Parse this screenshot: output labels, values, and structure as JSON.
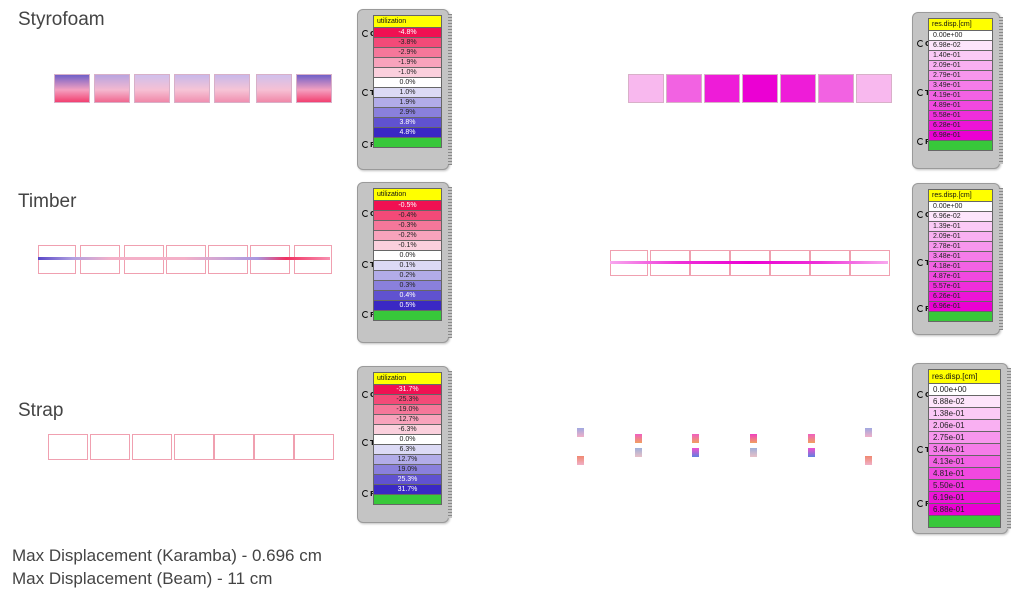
{
  "sections": [
    {
      "name": "Styrofoam",
      "utilization": {
        "header": "utilization",
        "ports": [
          "C",
          "T",
          "R"
        ],
        "labels": [
          "-4.8%",
          "-3.8%",
          "-2.9%",
          "-1.9%",
          "-1.0%",
          "0.0%",
          "1.0%",
          "1.9%",
          "2.9%",
          "3.8%",
          "4.8%"
        ]
      },
      "displacement": {
        "header": "res.disp.[cm]",
        "ports": [
          "C",
          "T",
          "R"
        ],
        "labels": [
          "0.00e+00",
          "6.98e-02",
          "1.40e-01",
          "2.09e-01",
          "2.79e-01",
          "3.49e-01",
          "4.19e-01",
          "4.89e-01",
          "5.58e-01",
          "6.28e-01",
          "6.98e-01"
        ]
      }
    },
    {
      "name": "Timber",
      "utilization": {
        "header": "utilization",
        "ports": [
          "C",
          "T",
          "R"
        ],
        "labels": [
          "-0.5%",
          "-0.4%",
          "-0.3%",
          "-0.2%",
          "-0.1%",
          "0.0%",
          "0.1%",
          "0.2%",
          "0.3%",
          "0.4%",
          "0.5%"
        ]
      },
      "displacement": {
        "header": "res.disp.[cm]",
        "ports": [
          "C",
          "T",
          "R"
        ],
        "labels": [
          "0.00e+00",
          "6.96e-02",
          "1.39e-01",
          "2.09e-01",
          "2.78e-01",
          "3.48e-01",
          "4.18e-01",
          "4.87e-01",
          "5.57e-01",
          "6.26e-01",
          "6.96e-01"
        ]
      }
    },
    {
      "name": "Strap",
      "utilization": {
        "header": "utilization",
        "ports": [
          "C",
          "T",
          "R"
        ],
        "labels": [
          "-31.7%",
          "-25.3%",
          "-19.0%",
          "-12.7%",
          "-6.3%",
          "0.0%",
          "6.3%",
          "12.7%",
          "19.0%",
          "25.3%",
          "31.7%"
        ]
      },
      "displacement": {
        "header": "res.disp.[cm]",
        "ports": [
          "C",
          "T",
          "R"
        ],
        "labels": [
          "0.00e+00",
          "6.88e-02",
          "1.38e-01",
          "2.06e-01",
          "2.75e-01",
          "3.44e-01",
          "4.13e-01",
          "4.81e-01",
          "5.50e-01",
          "6.19e-01",
          "6.88e-01"
        ]
      }
    }
  ],
  "utilization_colors": [
    "#f01052",
    "#f34a78",
    "#f5779a",
    "#f8a3bc",
    "#fbd0dd",
    "#ffffff",
    "#dcdaf5",
    "#b2ace8",
    "#8a80dc",
    "#6052d0",
    "#3a28c4"
  ],
  "displacement_colors": [
    "#ffffff",
    "#fde5fb",
    "#fbcaf6",
    "#f9b0f2",
    "#f796ed",
    "#f57ce9",
    "#f362e4",
    "#f148e0",
    "#ef2edb",
    "#ed14d7",
    "#eb00d3"
  ],
  "footer": {
    "line1": "Max Displacement (Karamba) - 0.696 cm",
    "line2": "Max Displacement (Beam) - 11 cm"
  }
}
